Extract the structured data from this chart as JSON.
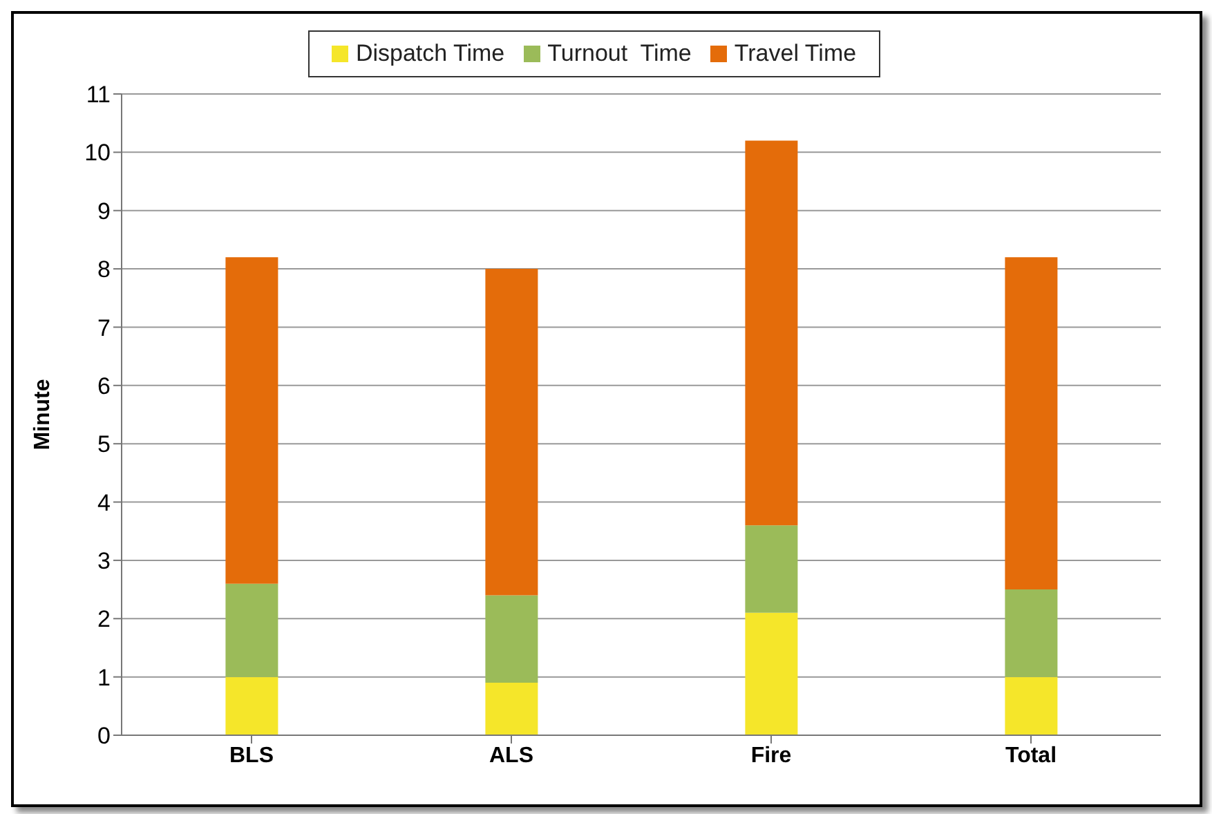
{
  "chart_data": {
    "type": "bar",
    "stacked": true,
    "ylabel": "Minute",
    "categories": [
      "BLS",
      "ALS",
      "Fire",
      "Total"
    ],
    "series": [
      {
        "name": "Dispatch Time",
        "color": "#f5e62a",
        "values": [
          1.0,
          0.9,
          2.1,
          1.0
        ]
      },
      {
        "name": "Turnout  Time",
        "color": "#9bbb59",
        "values": [
          1.6,
          1.5,
          1.5,
          1.5
        ]
      },
      {
        "name": "Travel Time",
        "color": "#e46c0a",
        "values": [
          5.6,
          5.6,
          6.6,
          5.7
        ]
      }
    ],
    "ylim": [
      0,
      11
    ],
    "yticks": [
      0,
      1,
      2,
      3,
      4,
      5,
      6,
      7,
      8,
      9,
      10,
      11
    ],
    "grid": "y",
    "legend": "top"
  }
}
